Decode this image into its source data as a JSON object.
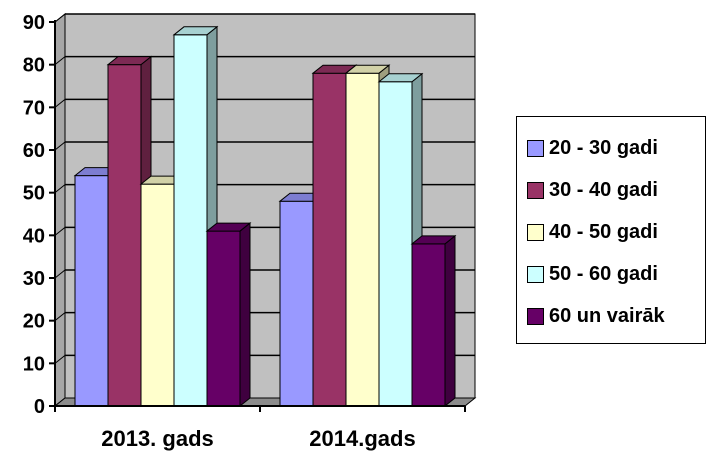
{
  "chart_data": {
    "type": "bar",
    "title": "",
    "xlabel": "",
    "ylabel": "",
    "categories": [
      "2013. gads",
      "2014.gads"
    ],
    "series": [
      {
        "name": "20 - 30 gadi",
        "values": [
          54,
          48
        ],
        "color": "#9999FF"
      },
      {
        "name": "30 - 40 gadi",
        "values": [
          80,
          78
        ],
        "color": "#993366"
      },
      {
        "name": "40 - 50 gadi",
        "values": [
          52,
          78
        ],
        "color": "#FFFFCC"
      },
      {
        "name": "50 - 60 gadi",
        "values": [
          87,
          76
        ],
        "color": "#CCFFFF"
      },
      {
        "name": "60 un vairāk",
        "values": [
          41,
          38
        ],
        "color": "#660066"
      }
    ],
    "ylim": [
      0,
      90
    ],
    "yticks": [
      0,
      10,
      20,
      30,
      40,
      50,
      60,
      70,
      80,
      90
    ],
    "grid": true,
    "plot_background": "#C0C0C0",
    "style": "3d-clustered-column",
    "legend_position": "right"
  }
}
